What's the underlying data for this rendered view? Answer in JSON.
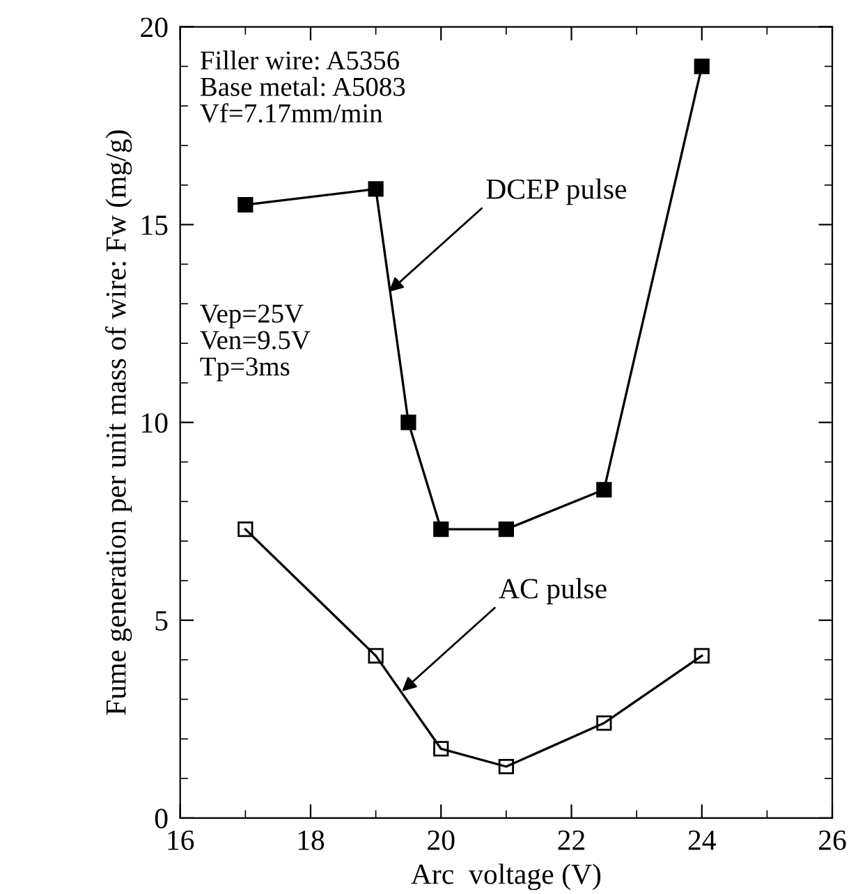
{
  "chart_data": {
    "type": "line",
    "xlabel": "Arc  voltage (V)",
    "ylabel": "Fume generation per unit mass of wire: Fw (mg/g)",
    "xlim": [
      16,
      26
    ],
    "xticks": [
      16,
      18,
      20,
      22,
      24,
      26
    ],
    "ylim": [
      0,
      20
    ],
    "yticks": [
      0,
      5,
      10,
      15,
      20
    ],
    "grid": false,
    "legend": false,
    "marker": "square",
    "line_style": "solid",
    "series": [
      {
        "color": "#000000",
        "x": [
          17,
          19,
          19.5,
          20,
          21,
          22.5,
          24
        ],
        "values": [
          15.5,
          15.9,
          10,
          7.3,
          7.3,
          8.3,
          19
        ]
      },
      {
        "color": "#000000",
        "x": [
          17,
          19,
          20,
          21,
          22.5,
          24
        ],
        "values": [
          7.3,
          4.1,
          1.75,
          1.3,
          2.4,
          4.1
        ]
      }
    ],
    "annotations": [
      "Filler wire: A5356\nBase metal: A5083\nVf=7.17mm/min",
      "Vep=25V\nVen=9.5V\nTp=3ms",
      {
        "text": "DCEP pulse",
        "x": 19.2,
        "y": 13.3
      },
      {
        "text": "AC pulse",
        "x": 19.4,
        "y": 3.2
      }
    ]
  }
}
